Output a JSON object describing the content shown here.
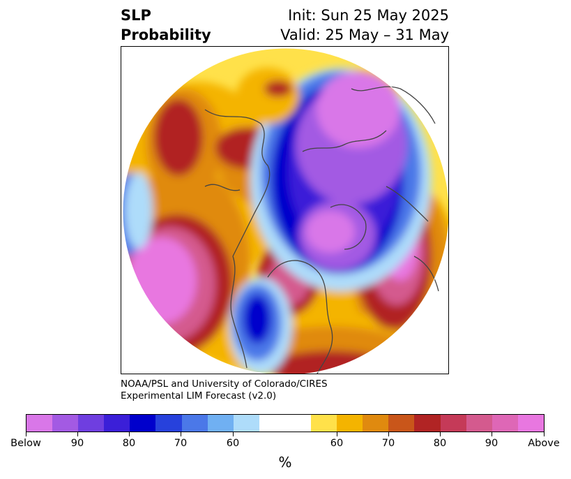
{
  "title": {
    "left_line1": "SLP",
    "left_line2": "Probability",
    "right_line1": "Init: Sun 25 May 2025",
    "right_line2": "Valid: 25 May – 31 May"
  },
  "credit": {
    "line1": "NOAA/PSL and University of Colorado/CIRES",
    "line2": "Experimental LIM Forecast (v2.0)"
  },
  "colorbar": {
    "segments": [
      "#d977e8",
      "#a35ae3",
      "#6f3ee0",
      "#3b1fd8",
      "#0000cc",
      "#2741dc",
      "#4b78e8",
      "#70b0f2",
      "#aedcfa",
      "#ffffff",
      "#ffe14a",
      "#f4b400",
      "#e08a0f",
      "#c9561a",
      "#b12424",
      "#c53a58",
      "#d45a8e",
      "#de67b6",
      "#e877e0"
    ],
    "tick_labels": [
      "Below",
      "90",
      "80",
      "70",
      "60",
      "60",
      "70",
      "80",
      "90",
      "Above"
    ],
    "unit": "%"
  },
  "map": {
    "colors": {
      "below_extreme": "#d977e8",
      "below_90": "#a35ae3",
      "below_80": "#3b1fd8",
      "below_70": "#0000cc",
      "below_60": "#4b78e8",
      "below_50": "#aedcfa",
      "above_50": "#ffe14a",
      "above_60": "#f4b400",
      "above_70": "#e08a0f",
      "above_80": "#b12424",
      "above_90": "#d45a8e",
      "above_extreme": "#e877e0"
    }
  }
}
